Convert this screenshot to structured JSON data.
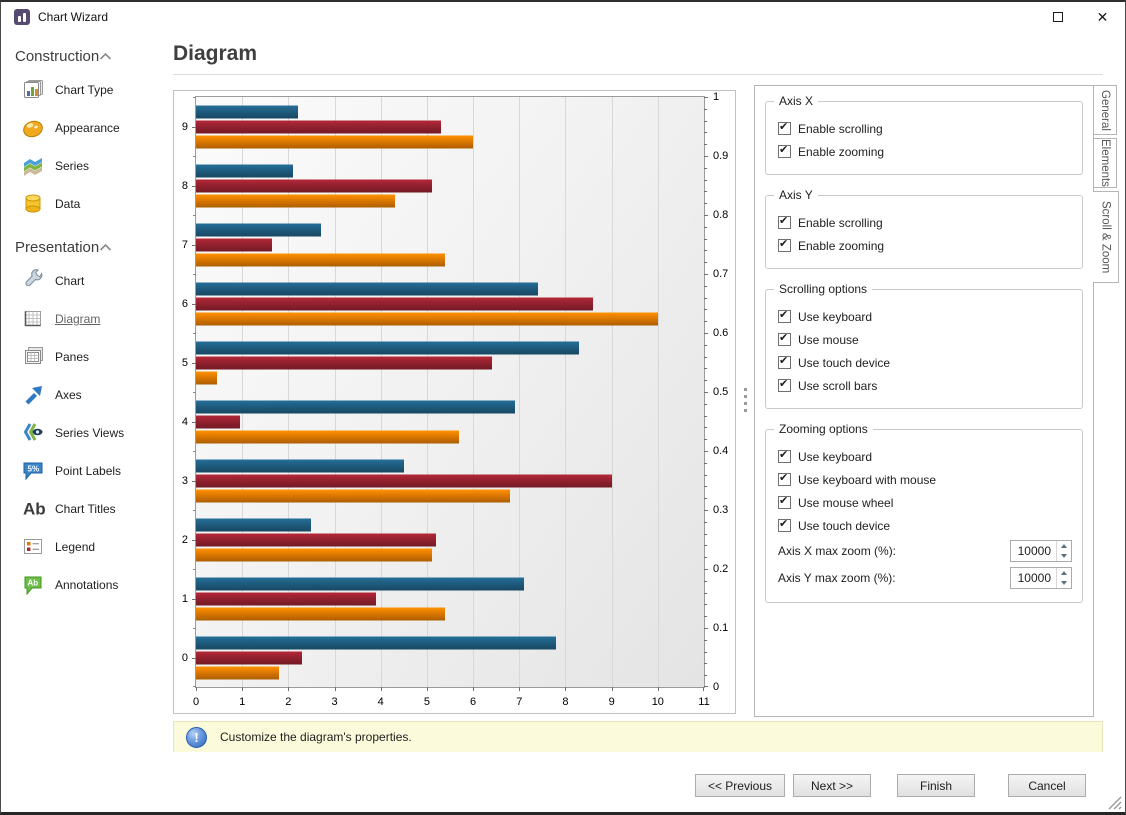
{
  "window": {
    "title": "Chart Wizard",
    "controls": [
      "maximize",
      "close"
    ]
  },
  "sidebar": {
    "sections": [
      {
        "label": "Construction",
        "items": [
          {
            "label": "Chart Type",
            "icon": "chart-type"
          },
          {
            "label": "Appearance",
            "icon": "appearance"
          },
          {
            "label": "Series",
            "icon": "series"
          },
          {
            "label": "Data",
            "icon": "data"
          }
        ]
      },
      {
        "label": "Presentation",
        "items": [
          {
            "label": "Chart",
            "icon": "chart"
          },
          {
            "label": "Diagram",
            "icon": "diagram",
            "selected": true
          },
          {
            "label": "Panes",
            "icon": "panes"
          },
          {
            "label": "Axes",
            "icon": "axes"
          },
          {
            "label": "Series Views",
            "icon": "series-views"
          },
          {
            "label": "Point Labels",
            "icon": "point-labels"
          },
          {
            "label": "Chart Titles",
            "icon": "chart-titles"
          },
          {
            "label": "Legend",
            "icon": "legend"
          },
          {
            "label": "Annotations",
            "icon": "annotations"
          }
        ]
      }
    ]
  },
  "page": {
    "title": "Diagram"
  },
  "chart_data": {
    "type": "bar",
    "orientation": "horizontal",
    "title": "",
    "legend": false,
    "grid": "vertical",
    "categories": [
      "0",
      "1",
      "2",
      "3",
      "4",
      "5",
      "6",
      "7",
      "8",
      "9"
    ],
    "category_order_top_to_bottom": [
      "9",
      "8",
      "7",
      "6",
      "5",
      "4",
      "3",
      "2",
      "1",
      "0"
    ],
    "series": [
      {
        "name": "blue",
        "color": "#1f5b7e",
        "values": [
          7.8,
          7.1,
          2.5,
          4.5,
          6.9,
          8.3,
          7.4,
          2.7,
          2.1,
          2.2
        ]
      },
      {
        "name": "red",
        "color": "#94212f",
        "values": [
          2.3,
          3.9,
          5.2,
          9.0,
          0.95,
          6.4,
          8.6,
          1.65,
          5.1,
          5.3
        ]
      },
      {
        "name": "orange",
        "color": "#dd7800",
        "values": [
          1.8,
          5.4,
          5.1,
          6.8,
          5.7,
          0.45,
          10.0,
          5.4,
          4.3,
          6.0
        ]
      }
    ],
    "x_axis": {
      "min": 0,
      "max": 11,
      "step": 1,
      "labels": [
        "0",
        "1",
        "2",
        "3",
        "4",
        "5",
        "6",
        "7",
        "8",
        "9",
        "10",
        "11"
      ]
    },
    "secondary_y_axis": {
      "min": 0,
      "max": 1,
      "step": 0.1,
      "labels": [
        "1",
        "0.9",
        "0.8",
        "0.7",
        "0.6",
        "0.5",
        "0.4",
        "0.3",
        "0.2",
        "0.1",
        "0"
      ]
    }
  },
  "options_panel": {
    "tabs": [
      {
        "label": "General"
      },
      {
        "label": "Elements"
      },
      {
        "label": "Scroll & Zoom",
        "active": true
      }
    ],
    "groups": [
      {
        "title": "Axis X",
        "checkboxes": [
          {
            "label": "Enable scrolling",
            "checked": true
          },
          {
            "label": "Enable zooming",
            "checked": true
          }
        ]
      },
      {
        "title": "Axis Y",
        "checkboxes": [
          {
            "label": "Enable scrolling",
            "checked": true
          },
          {
            "label": "Enable zooming",
            "checked": true
          }
        ]
      },
      {
        "title": "Scrolling options",
        "checkboxes": [
          {
            "label": "Use keyboard",
            "checked": true
          },
          {
            "label": "Use mouse",
            "checked": true
          },
          {
            "label": "Use touch device",
            "checked": true
          },
          {
            "label": "Use scroll bars",
            "checked": true
          }
        ]
      },
      {
        "title": "Zooming options",
        "checkboxes": [
          {
            "label": "Use keyboard",
            "checked": true
          },
          {
            "label": "Use keyboard with mouse",
            "checked": true
          },
          {
            "label": "Use mouse wheel",
            "checked": true
          },
          {
            "label": "Use touch device",
            "checked": true
          }
        ],
        "spins": [
          {
            "label": "Axis X max zoom (%):",
            "value": "10000"
          },
          {
            "label": "Axis Y max zoom (%):",
            "value": "10000"
          }
        ]
      }
    ]
  },
  "info_bar": {
    "text": "Customize the diagram's properties."
  },
  "footer": {
    "buttons": [
      {
        "label": "<< Previous",
        "name": "previous-button"
      },
      {
        "label": "Next >>",
        "name": "next-button"
      },
      {
        "label": "Finish",
        "name": "finish-button"
      },
      {
        "label": "Cancel",
        "name": "cancel-button"
      }
    ]
  }
}
